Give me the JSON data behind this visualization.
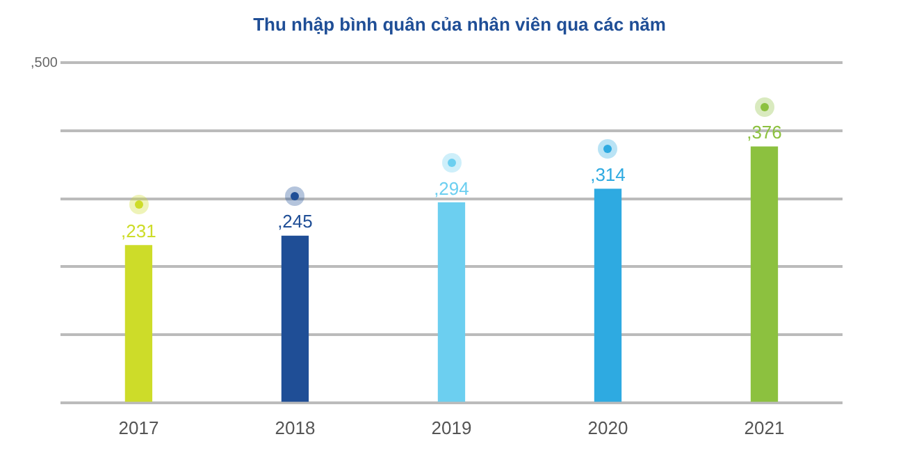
{
  "chart_data": {
    "type": "bar",
    "title": "Thu nhập bình quân của nhân viên qua các năm",
    "categories": [
      "2017",
      "2018",
      "2019",
      "2020",
      "2021"
    ],
    "values": [
      231,
      245,
      294,
      314,
      376
    ],
    "colors": [
      "#cddc29",
      "#1f4e96",
      "#6ccff0",
      "#2eaae1",
      "#8cc13f"
    ],
    "value_labels": [
      ",231",
      ",245",
      ",294",
      ",314",
      ",376"
    ],
    "ylim": [
      0,
      500
    ],
    "yticks": [
      {
        "value": 0,
        "label": null
      },
      {
        "value": 100,
        "label": null
      },
      {
        "value": 200,
        "label": null
      },
      {
        "value": 300,
        "label": null
      },
      {
        "value": 400,
        "label": null
      },
      {
        "value": 500,
        "label": ",500"
      }
    ],
    "grid": "y",
    "legend": false
  }
}
